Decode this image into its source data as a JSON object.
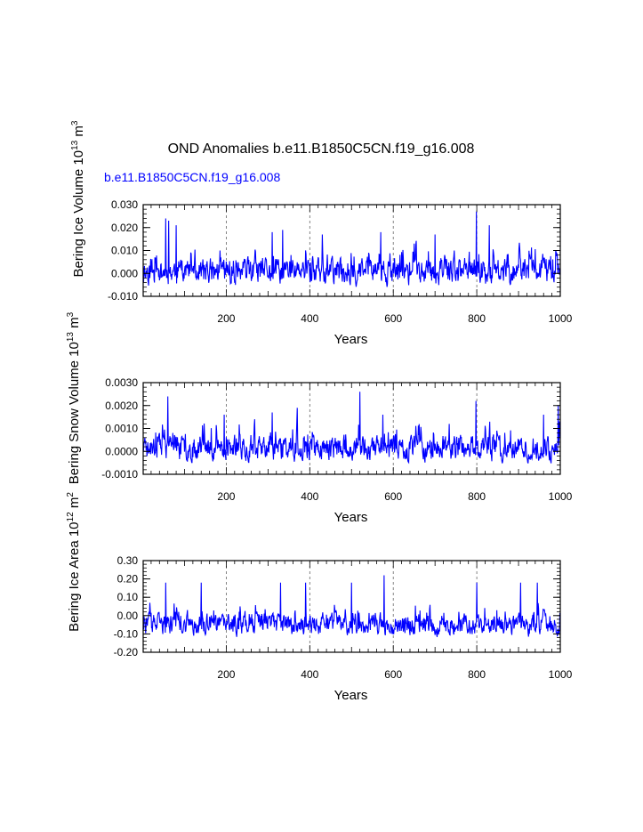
{
  "title": "OND Anomalies b.e11.B1850C5CN.f19_g16.008",
  "series_label": "b.e11.B1850C5CN.f19_g16.008",
  "colors": {
    "series": "#0000ff",
    "axes": "#000000",
    "grid": "#666666"
  },
  "chart_data": [
    {
      "type": "line",
      "id": "ice-volume",
      "ylabel": {
        "pre": "Bering Ice Volume 10",
        "exp": "13",
        "mid": " m",
        "exp2": "3"
      },
      "xlabel": "Years",
      "xlim": [
        1,
        1000
      ],
      "ylim": [
        -0.01,
        0.03
      ],
      "yticks": [
        "0.030",
        "0.020",
        "0.010",
        "0.000",
        "-0.010"
      ],
      "ytick_values": [
        0.03,
        0.02,
        0.01,
        0.0,
        -0.01
      ],
      "xticks": [
        "200",
        "400",
        "600",
        "800",
        "1000"
      ],
      "xtick_values": [
        200,
        400,
        600,
        800,
        1000
      ],
      "grid_x": [
        200,
        400,
        600,
        800
      ],
      "range": [
        -0.009,
        0.027
      ],
      "peaks": [
        [
          55,
          0.024
        ],
        [
          62,
          0.023
        ],
        [
          80,
          0.021
        ],
        [
          310,
          0.018
        ],
        [
          335,
          0.019
        ],
        [
          430,
          0.017
        ],
        [
          570,
          0.018
        ],
        [
          700,
          0.017
        ],
        [
          799,
          0.027
        ],
        [
          830,
          0.021
        ]
      ],
      "n": 1000,
      "seed": 11
    },
    {
      "type": "line",
      "id": "snow-volume",
      "ylabel": {
        "pre": "Bering Snow Volume 10",
        "exp": "13",
        "mid": " m",
        "exp2": "3"
      },
      "xlabel": "Years",
      "xlim": [
        1,
        1000
      ],
      "ylim": [
        -0.001,
        0.003
      ],
      "yticks": [
        "0.0030",
        "0.0020",
        "0.0010",
        "0.0000",
        "-0.0010"
      ],
      "ytick_values": [
        0.003,
        0.002,
        0.001,
        0.0,
        -0.001
      ],
      "xticks": [
        "200",
        "400",
        "600",
        "800",
        "1000"
      ],
      "xtick_values": [
        200,
        400,
        600,
        800,
        1000
      ],
      "grid_x": [
        200,
        400,
        600,
        800
      ],
      "range": [
        -0.0008,
        0.0026
      ],
      "peaks": [
        [
          60,
          0.0024
        ],
        [
          195,
          0.0016
        ],
        [
          310,
          0.0017
        ],
        [
          370,
          0.0019
        ],
        [
          520,
          0.0026
        ],
        [
          575,
          0.0016
        ],
        [
          798,
          0.0022
        ],
        [
          960,
          0.0016
        ],
        [
          995,
          0.002
        ]
      ],
      "n": 1000,
      "seed": 23
    },
    {
      "type": "line",
      "id": "ice-area",
      "ylabel": {
        "pre": "Bering Ice Area 10",
        "exp": "12",
        "mid": " m",
        "exp2": "2"
      },
      "xlabel": "Years",
      "xlim": [
        1,
        1000
      ],
      "ylim": [
        -0.2,
        0.3
      ],
      "yticks": [
        "0.30",
        "0.20",
        "0.10",
        "0.00",
        "-0.10",
        "-0.20"
      ],
      "ytick_values": [
        0.3,
        0.2,
        0.1,
        0.0,
        -0.1,
        -0.2
      ],
      "xticks": [
        "200",
        "400",
        "600",
        "800",
        "1000"
      ],
      "xtick_values": [
        200,
        400,
        600,
        800,
        1000
      ],
      "grid_x": [
        200,
        400,
        600,
        800
      ],
      "range": [
        -0.15,
        0.22
      ],
      "peaks": [
        [
          55,
          0.18
        ],
        [
          140,
          0.18
        ],
        [
          330,
          0.18
        ],
        [
          390,
          0.18
        ],
        [
          500,
          0.18
        ],
        [
          578,
          0.22
        ],
        [
          800,
          0.18
        ],
        [
          905,
          0.18
        ],
        [
          945,
          0.18
        ]
      ],
      "n": 1000,
      "seed": 37
    }
  ]
}
